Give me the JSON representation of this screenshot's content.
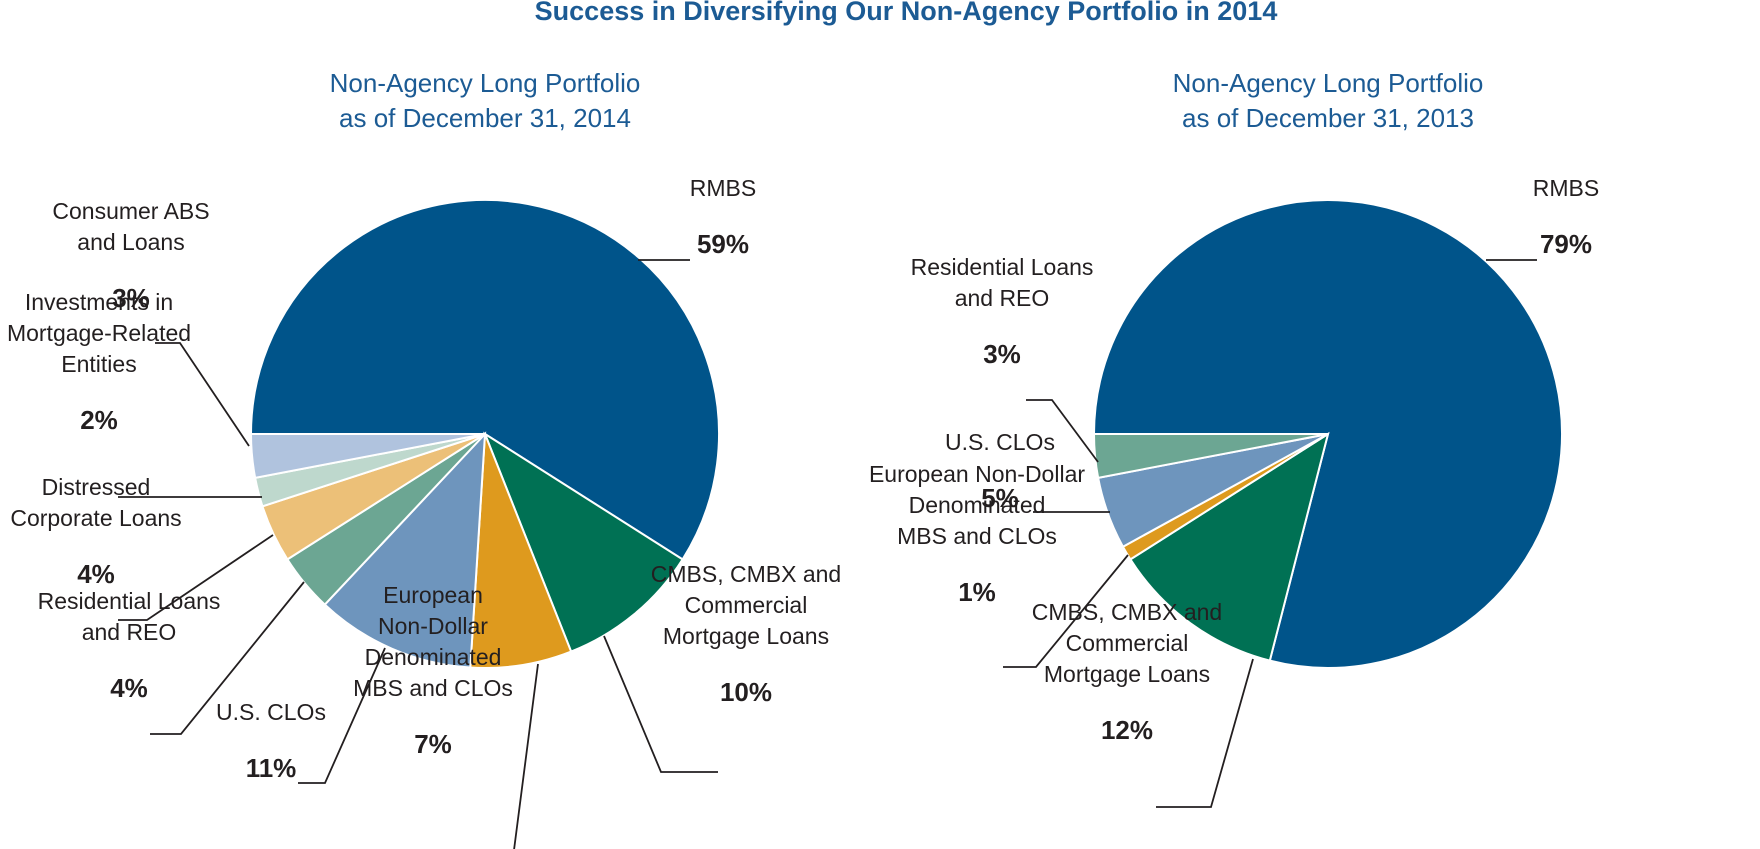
{
  "title": "Success in Diversifying Our Non-Agency Portfolio in 2014",
  "chart_data": [
    {
      "type": "pie",
      "title": [
        "Non-Agency Long Portfolio",
        "as of December 31, 2014"
      ],
      "slices": [
        {
          "label": [
            "RMBS"
          ],
          "value": 59,
          "value_label": "59%",
          "color": "#00548a"
        },
        {
          "label": [
            "CMBS, CMBX and",
            "Commercial",
            "Mortgage Loans"
          ],
          "value": 10,
          "value_label": "10%",
          "color": "#007154"
        },
        {
          "label": [
            "European",
            "Non-Dollar",
            "Denominated",
            "MBS and CLOs"
          ],
          "value": 7,
          "value_label": "7%",
          "color": "#de9a1e"
        },
        {
          "label": [
            "U.S. CLOs"
          ],
          "value": 11,
          "value_label": "11%",
          "color": "#6e95bd"
        },
        {
          "label": [
            "Residential Loans",
            "and REO"
          ],
          "value": 4,
          "value_label": "4%",
          "color": "#6ca693"
        },
        {
          "label": [
            "Distressed",
            "Corporate Loans"
          ],
          "value": 4,
          "value_label": "4%",
          "color": "#ecc078"
        },
        {
          "label": [
            "Investments in",
            "Mortgage-Related",
            "Entities"
          ],
          "value": 2,
          "value_label": "2%",
          "color": "#bed8cd"
        },
        {
          "label": [
            "Consumer ABS",
            "and Loans"
          ],
          "value": 3,
          "value_label": "3%",
          "color": "#b0c3de"
        }
      ]
    },
    {
      "type": "pie",
      "title": [
        "Non-Agency Long Portfolio",
        "as of December 31, 2013"
      ],
      "slices": [
        {
          "label": [
            "RMBS"
          ],
          "value": 79,
          "value_label": "79%",
          "color": "#00548a"
        },
        {
          "label": [
            "CMBS, CMBX and",
            "Commercial",
            "Mortgage Loans"
          ],
          "value": 12,
          "value_label": "12%",
          "color": "#007154"
        },
        {
          "label": [
            "European Non-Dollar",
            "Denominated",
            "MBS and CLOs"
          ],
          "value": 1,
          "value_label": "1%",
          "color": "#de9a1e"
        },
        {
          "label": [
            "U.S. CLOs"
          ],
          "value": 5,
          "value_label": "5%",
          "color": "#6e95bd"
        },
        {
          "label": [
            "Residential Loans",
            "and REO"
          ],
          "value": 3,
          "value_label": "3%",
          "color": "#6ca693"
        }
      ]
    }
  ]
}
